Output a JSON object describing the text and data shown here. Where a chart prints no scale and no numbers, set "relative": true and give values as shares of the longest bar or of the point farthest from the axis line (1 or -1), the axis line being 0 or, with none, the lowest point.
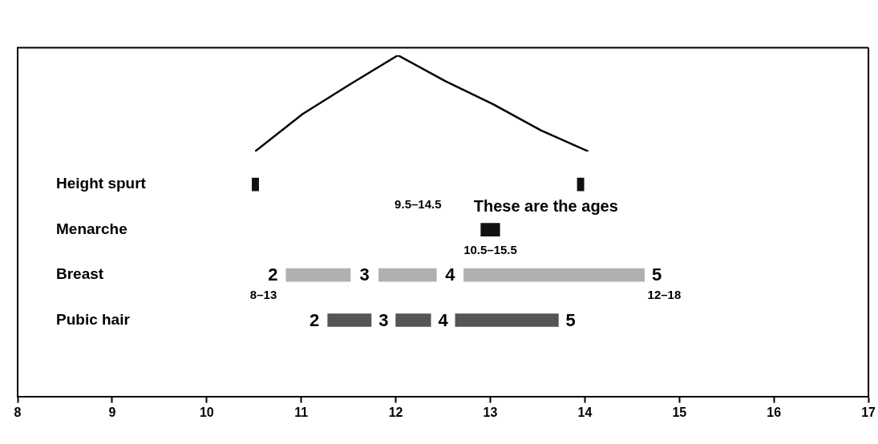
{
  "chart_data": [
    {
      "type": "line",
      "relative": true,
      "categories": [
        null,
        null,
        null,
        null,
        null,
        null,
        null,
        null
      ],
      "values": [
        0,
        0.39,
        0.7,
        1,
        0.73,
        0.49,
        0.22,
        0
      ],
      "color": "#000000",
      "marker": "none",
      "grid": false,
      "legend": false
    },
    {
      "type": "bar",
      "orientation": "horizontal",
      "categories": [
        "Height spurt",
        "Menarche",
        "Breast",
        "Pubic hair"
      ],
      "series": [
        {
          "color": "#111111",
          "values": [
            0.07,
            0.2,
            null,
            null
          ],
          "base": [
            10.48,
            12.9,
            null,
            null
          ]
        },
        {
          "color": "#111111",
          "values": [
            0.07,
            null,
            null,
            null
          ],
          "base": [
            13.92,
            null,
            null,
            null
          ]
        },
        {
          "colors": [
            null,
            null,
            "#b0b0b0",
            "#555555"
          ],
          "values": [
            null,
            null,
            0.68,
            0.46
          ],
          "base": [
            null,
            null,
            10.84,
            11.28
          ]
        },
        {
          "colors": [
            null,
            null,
            "#b0b0b0",
            "#555555"
          ],
          "values": [
            null,
            null,
            0.61,
            0.37
          ],
          "base": [
            null,
            null,
            11.82,
            12.0
          ]
        },
        {
          "colors": [
            null,
            null,
            "#b0b0b0",
            "#555555"
          ],
          "values": [
            null,
            null,
            1.91,
            1.09
          ],
          "base": [
            null,
            null,
            12.72,
            12.63
          ]
        }
      ],
      "xlim": [
        8,
        17
      ],
      "xticks": [
        8,
        9,
        10,
        11,
        12,
        13,
        14,
        15,
        16,
        17
      ],
      "grid": false,
      "legend": false,
      "annotations": [
        "2",
        "3",
        "4",
        "5",
        "2",
        "3",
        "4",
        "5",
        "9.5–14.5",
        "10.5–15.5",
        "8–13",
        "12–18",
        "These are the ages"
      ]
    }
  ]
}
